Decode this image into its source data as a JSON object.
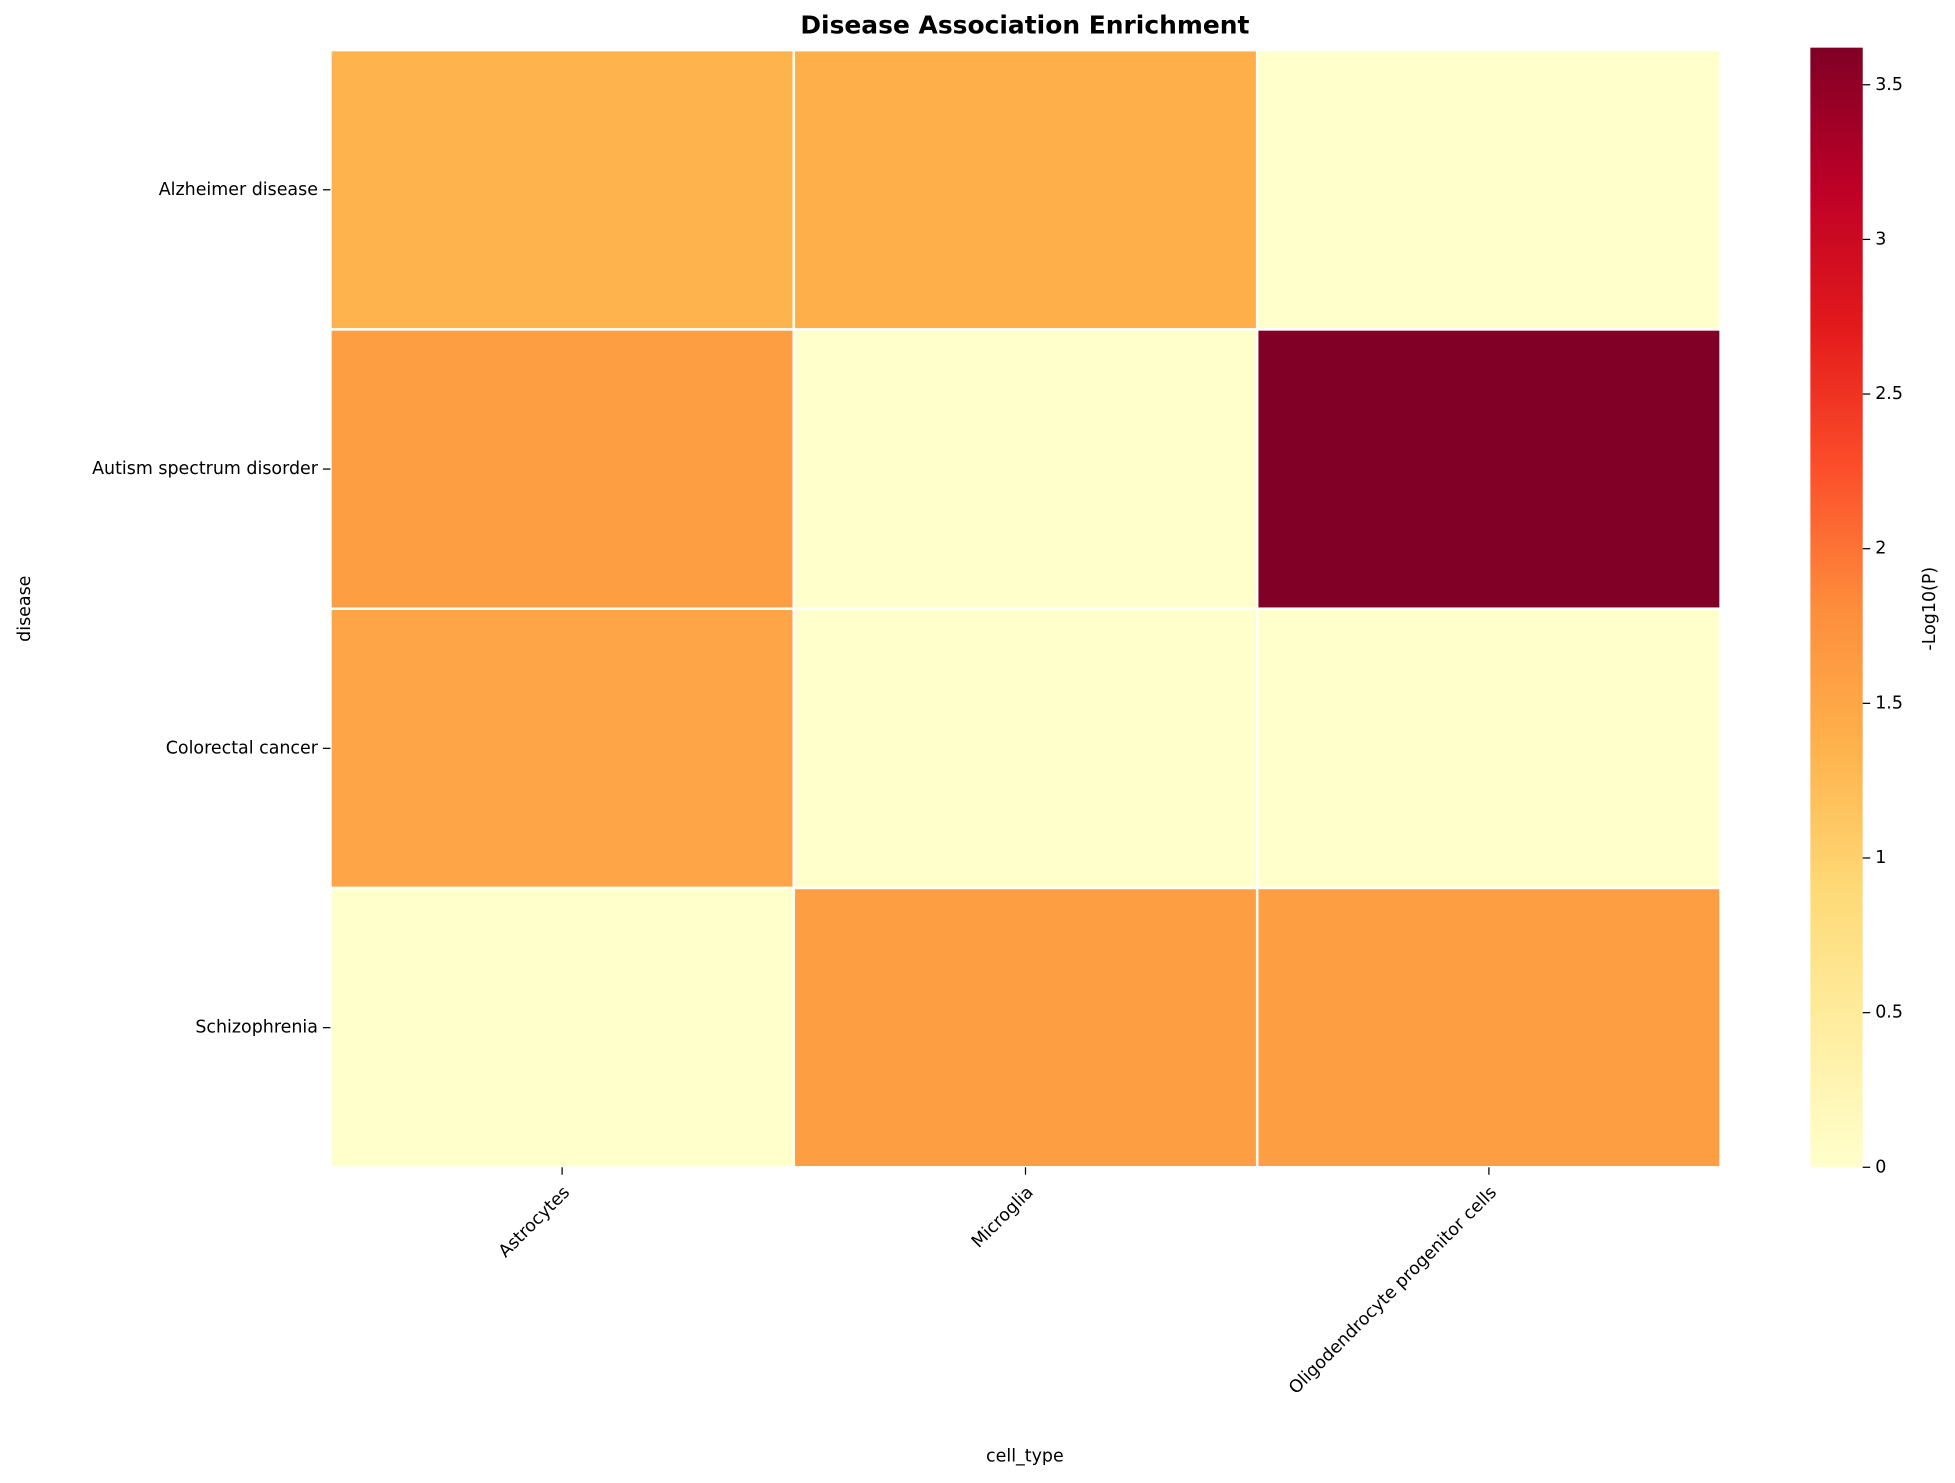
{
  "chart_data": {
    "type": "heatmap",
    "title": "Disease Association Enrichment",
    "x_label": "cell_type",
    "y_label": "disease",
    "x_categories": [
      "Astrocytes",
      "Microglia",
      "Oligodendrocyte progenitor cells"
    ],
    "y_categories": [
      "Alzheimer disease",
      "Autism spectrum disorder",
      "Colorectal cancer",
      "Schizophrenia"
    ],
    "values": [
      [
        1.35,
        1.4,
        0
      ],
      [
        1.6,
        0,
        3.62
      ],
      [
        1.5,
        0,
        0
      ],
      [
        0,
        1.6,
        1.6
      ]
    ],
    "colormap": [
      "#ffffcc",
      "#ffeda0",
      "#fed976",
      "#feb24c",
      "#fd8d3c",
      "#fc4e2a",
      "#e31a1c",
      "#bd0026",
      "#800026"
    ],
    "colorbar_label": "-Log10(P)",
    "clim": [
      0,
      3.62
    ],
    "cticks": [
      0,
      0.5,
      1,
      1.5,
      2,
      2.5,
      3,
      3.5
    ]
  }
}
